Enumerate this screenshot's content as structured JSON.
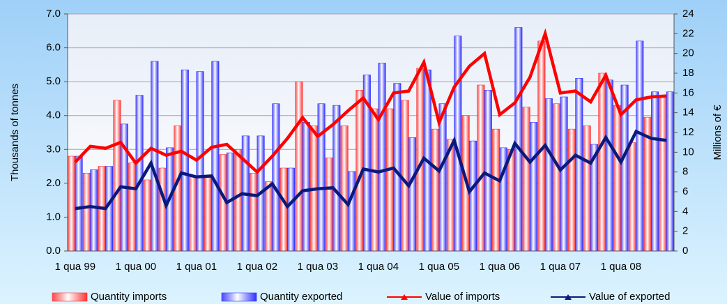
{
  "chart_data": {
    "type": "bar-line",
    "y_label": "Thousands of tonnes",
    "y2_label": "Millions of €",
    "categories": [
      "1 qua 99",
      null,
      null,
      null,
      "1 qua 00",
      null,
      null,
      null,
      "1 qua 01",
      null,
      null,
      null,
      "1 qua 02",
      null,
      null,
      null,
      "1 qua 03",
      null,
      null,
      null,
      "1 qua 04",
      null,
      null,
      null,
      "1 qua 05",
      null,
      null,
      null,
      "1 qua 06",
      null,
      null,
      null,
      "1 qua 07",
      null,
      null,
      null,
      "1 qua 08",
      null,
      null,
      null
    ],
    "ylim": [
      0,
      7
    ],
    "yticks": [
      {
        "value": 0,
        "label": "0.0"
      },
      {
        "value": 1,
        "label": "1.0"
      },
      {
        "value": 2,
        "label": "2.0"
      },
      {
        "value": 3,
        "label": "3.0"
      },
      {
        "value": 4,
        "label": "4.0"
      },
      {
        "value": 5,
        "label": "5.0"
      },
      {
        "value": 6,
        "label": "6.0"
      },
      {
        "value": 7,
        "label": "7.0"
      }
    ],
    "y2lim": [
      0,
      24
    ],
    "y2ticks": [
      0,
      2,
      4,
      6,
      8,
      10,
      12,
      14,
      16,
      18,
      20,
      22,
      24
    ],
    "grid": true,
    "legend": "bottom",
    "series": [
      {
        "name": "Quantity imports",
        "kind": "bar",
        "color": "#ff3030",
        "values": [
          2.8,
          2.3,
          2.5,
          4.45,
          2.6,
          2.1,
          2.45,
          3.7,
          2.2,
          2.2,
          2.85,
          3.0,
          2.3,
          2.05,
          2.45,
          5.0,
          3.7,
          2.75,
          3.7,
          4.75,
          4.2,
          4.2,
          4.45,
          5.4,
          3.6,
          3.3,
          4.0,
          4.9,
          3.6,
          3.0,
          4.25,
          6.2,
          4.35,
          3.6,
          3.7,
          5.25,
          4.3,
          3.2,
          3.95,
          4.6
        ]
      },
      {
        "name": "Quantity exported",
        "kind": "bar",
        "color": "#3030ff",
        "values": [
          2.8,
          2.4,
          2.5,
          3.75,
          4.6,
          5.6,
          3.05,
          5.35,
          5.3,
          5.6,
          2.9,
          3.4,
          3.4,
          4.35,
          2.45,
          3.8,
          4.35,
          4.3,
          2.35,
          5.2,
          5.55,
          4.95,
          3.35,
          5.35,
          4.35,
          6.35,
          3.25,
          4.75,
          3.05,
          6.6,
          3.8,
          4.5,
          4.55,
          5.1,
          3.15,
          5.05,
          4.9,
          6.2,
          4.7,
          4.7
        ]
      },
      {
        "name": "Value of imports",
        "kind": "line",
        "axis": "y2",
        "color": "#ff0000",
        "values": [
          9.0,
          10.6,
          10.4,
          11.0,
          8.9,
          10.4,
          9.7,
          10.1,
          9.2,
          10.5,
          10.8,
          9.4,
          8.0,
          9.6,
          11.4,
          13.5,
          11.6,
          12.8,
          14.2,
          15.5,
          13.3,
          16.0,
          16.2,
          19.1,
          13.0,
          16.6,
          18.7,
          20.0,
          13.8,
          15.0,
          17.6,
          22.0,
          16.0,
          16.2,
          15.1,
          17.8,
          13.8,
          15.3,
          15.6,
          15.7
        ]
      },
      {
        "name": "Value of exported",
        "kind": "line",
        "axis": "y2",
        "color": "#0a1a7a",
        "values": [
          4.3,
          4.5,
          4.3,
          6.5,
          6.3,
          8.9,
          4.6,
          7.9,
          7.5,
          7.6,
          4.9,
          5.8,
          5.6,
          6.8,
          4.5,
          6.1,
          6.3,
          6.4,
          4.7,
          8.3,
          8.0,
          8.4,
          6.6,
          9.4,
          8.1,
          11.2,
          6.0,
          7.9,
          7.1,
          10.9,
          9.0,
          10.7,
          8.2,
          9.7,
          8.9,
          11.5,
          9.0,
          12.1,
          11.4,
          11.2
        ]
      }
    ]
  }
}
